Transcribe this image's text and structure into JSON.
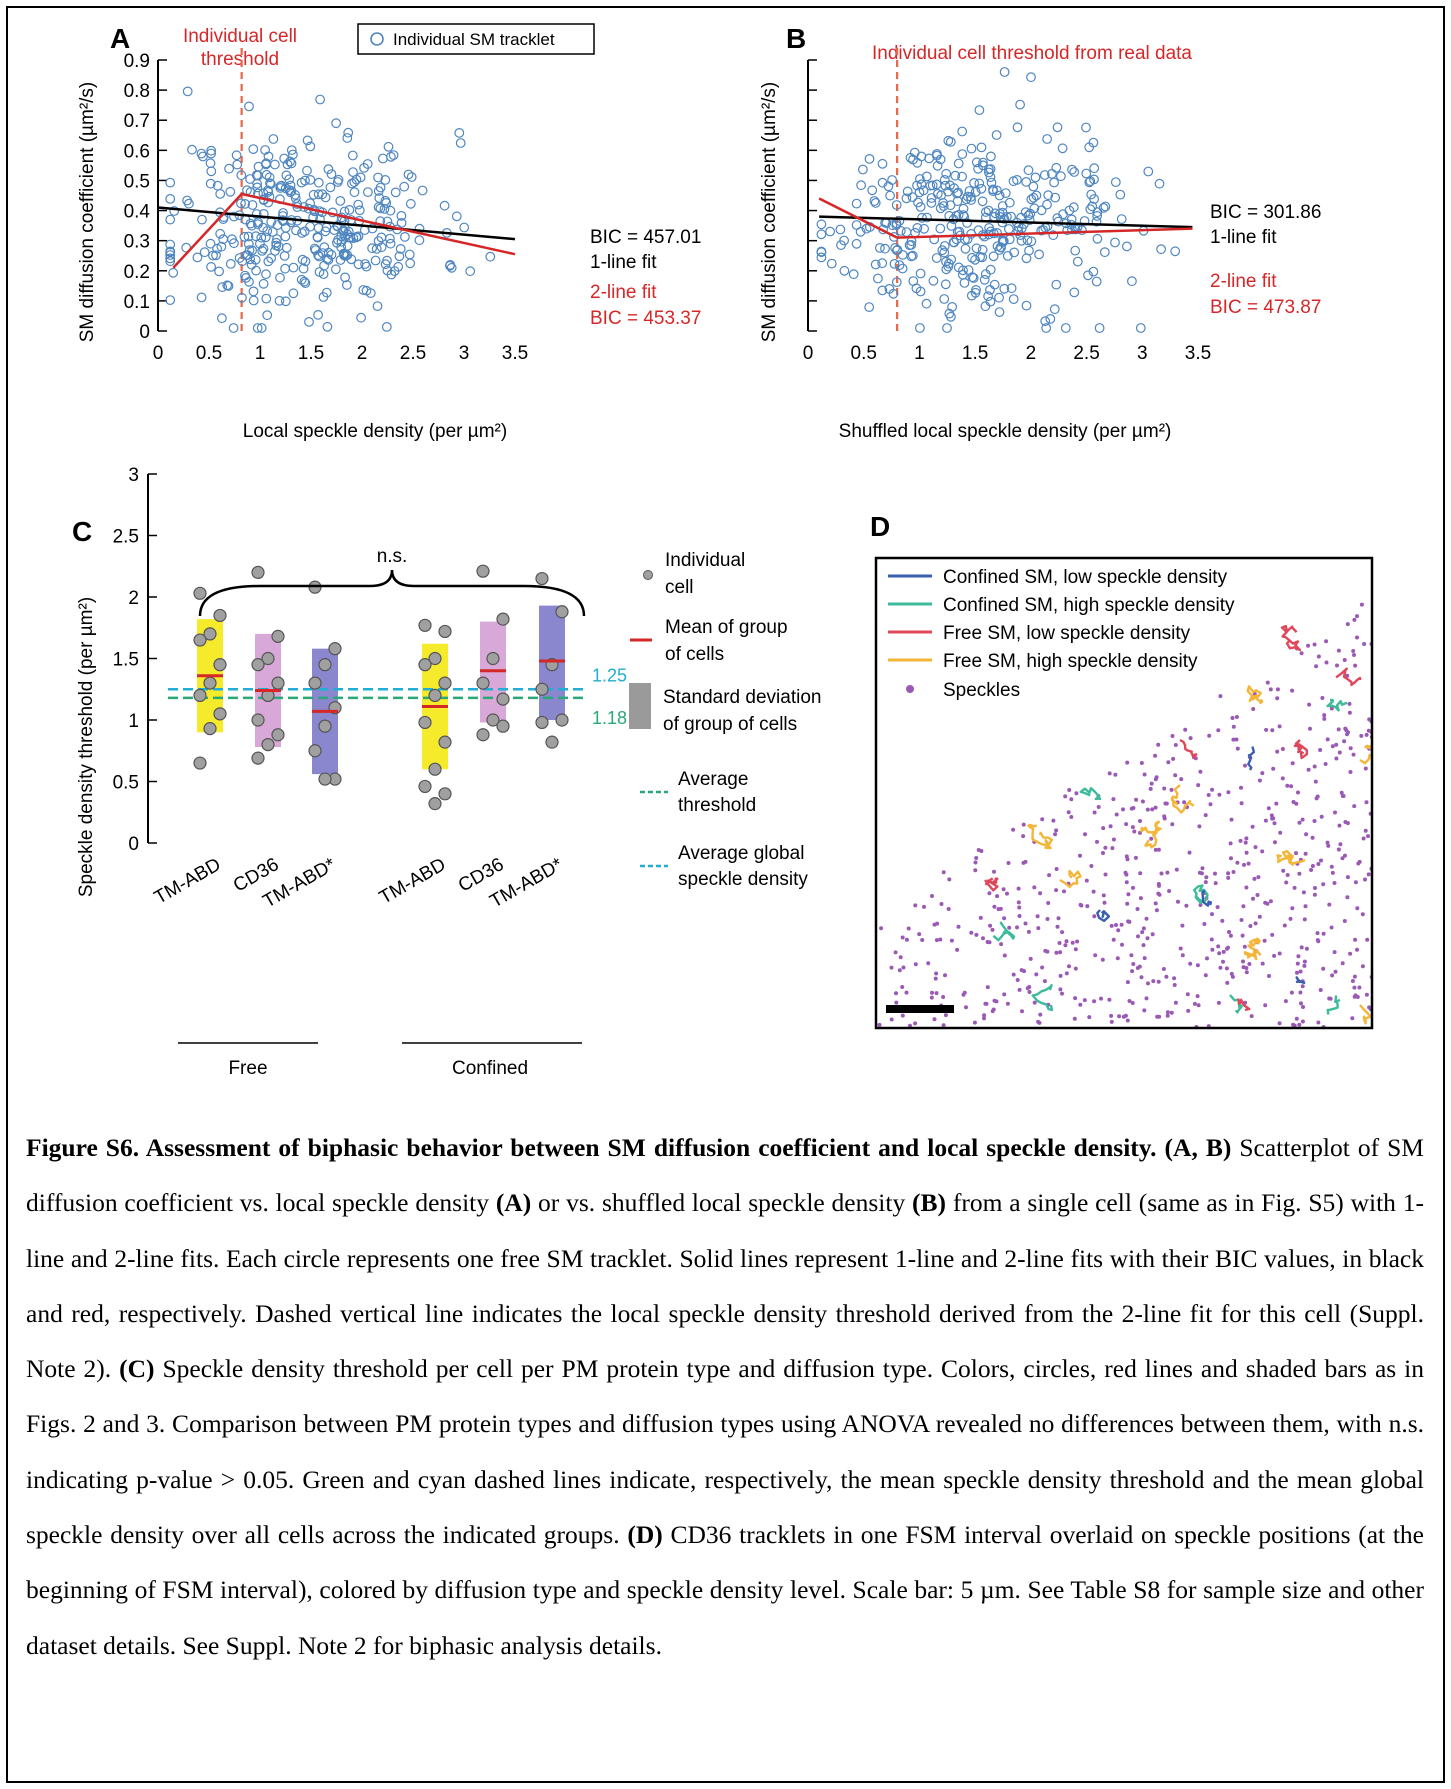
{
  "panels": {
    "A": {
      "letter": "A",
      "ylabel": "SM diffusion coefficient (µm²/s)",
      "xlabel": "Local speckle density (per µm²)",
      "threshold_label_line1": "Individual cell",
      "threshold_label_line2": "threshold",
      "legend_label": "Individual SM tracklet",
      "bic_1line": "BIC = 457.01",
      "label_1line": "1-line fit",
      "label_2line": "2-line fit",
      "bic_2line": "BIC = 453.37"
    },
    "B": {
      "letter": "B",
      "ylabel": "SM diffusion coefficient (µm²/s)",
      "xlabel": "Shuffled local speckle density (per µm²)",
      "threshold_label": "Individual cell threshold from real data",
      "bic_1line": "BIC = 301.86",
      "label_1line": "1-line fit",
      "label_2line": "2-line fit",
      "bic_2line": "BIC = 473.87"
    },
    "C": {
      "letter": "C",
      "ylabel": "Speckle density threshold (per µm²)",
      "ns_label": "n.s.",
      "avg_threshold_value": "1.18",
      "avg_global_value": "1.25",
      "group_free": "Free",
      "group_confined": "Confined",
      "legend": {
        "cell_line1": "Individual",
        "cell_line2": "cell",
        "mean_line1": "Mean of group",
        "mean_line2": "of cells",
        "sd_line1": "Standard deviation",
        "sd_line2": "of group of cells",
        "thr_line1": "Average",
        "thr_line2": "threshold",
        "glob_line1": "Average global",
        "glob_line2": "speckle density"
      }
    },
    "D": {
      "letter": "D",
      "legend": {
        "confined_low": "Confined SM, low speckle density",
        "confined_high": "Confined SM, high speckle density",
        "free_low": "Free SM, low speckle density",
        "free_high": "Free SM, high speckle density",
        "speckles": "Speckles"
      }
    }
  },
  "colors": {
    "red": "#d62728",
    "threshold_dash": "#e8674a",
    "scatter_blue": "#4f86c0",
    "yellow": "#f5eb2a",
    "pink": "#d8a8d8",
    "purple": "#8a87cf",
    "green_dash": "#2aa876",
    "cyan_dash": "#22aed4",
    "confined_low": "#3a5fb0",
    "confined_high": "#3dbb9b",
    "free_low": "#e0475a",
    "free_high": "#f4b638",
    "speckle": "#9b59b6"
  },
  "chart_data": [
    {
      "panel": "A",
      "type": "scatter",
      "ylabel": "SM diffusion coefficient (µm²/s)",
      "xlabel": "Local speckle density (per µm²)",
      "xlim": [
        0,
        3.5
      ],
      "ylim": [
        0,
        0.9
      ],
      "xticks": [
        "0",
        "0.5",
        "1",
        "1.5",
        "2",
        "2.5",
        "3",
        "3.5"
      ],
      "yticks": [
        "0",
        "0.1",
        "0.2",
        "0.3",
        "0.4",
        "0.5",
        "0.6",
        "0.7",
        "0.8",
        "0.9"
      ],
      "threshold_x": 0.82,
      "fit_1line": {
        "x": [
          0,
          3.5
        ],
        "y": [
          0.41,
          0.305
        ]
      },
      "fit_2line": {
        "x": [
          0.15,
          0.82,
          3.5
        ],
        "y": [
          0.21,
          0.455,
          0.255
        ]
      },
      "series": [
        {
          "name": "Individual SM tracklet"
        }
      ]
    },
    {
      "panel": "B",
      "type": "scatter",
      "ylabel": "SM diffusion coefficient (µm²/s)",
      "xlabel": "Shuffled local speckle density (per µm²)",
      "xlim": [
        0,
        3.5
      ],
      "ylim": [
        0,
        0.9
      ],
      "xticks": [
        "0",
        "0.5",
        "1",
        "1.5",
        "2",
        "2.5",
        "3",
        "3.5"
      ],
      "threshold_x": 0.8,
      "fit_1line": {
        "x": [
          0.1,
          3.45
        ],
        "y": [
          0.38,
          0.345
        ]
      },
      "fit_2line": {
        "x": [
          0.1,
          0.8,
          3.45
        ],
        "y": [
          0.44,
          0.31,
          0.34
        ]
      }
    },
    {
      "panel": "C",
      "type": "scatter",
      "ylabel": "Speckle density threshold (per µm²)",
      "ylim": [
        0,
        3
      ],
      "yticks": [
        "0",
        "0.5",
        "1",
        "1.5",
        "2",
        "2.5",
        "3"
      ],
      "categories": [
        "TM-ABD",
        "CD36",
        "TM-ABD*",
        "TM-ABD",
        "CD36",
        "TM-ABD*"
      ],
      "groups": [
        "Free",
        "Free",
        "Free",
        "Confined",
        "Confined",
        "Confined"
      ],
      "means": [
        1.36,
        1.24,
        1.07,
        1.11,
        1.4,
        1.48
      ],
      "sd_low": [
        0.9,
        0.78,
        0.56,
        0.6,
        0.98,
        1.0
      ],
      "sd_high": [
        1.82,
        1.7,
        1.58,
        1.62,
        1.8,
        1.93
      ],
      "points": [
        [
          2.03,
          1.85,
          1.7,
          1.65,
          1.45,
          1.3,
          1.2,
          1.05,
          0.93,
          0.65
        ],
        [
          2.2,
          1.68,
          1.5,
          1.45,
          1.3,
          1.2,
          1.0,
          0.88,
          0.8,
          0.69
        ],
        [
          2.08,
          1.58,
          1.45,
          1.3,
          1.1,
          0.95,
          0.75,
          0.52,
          0.52
        ],
        [
          1.77,
          1.72,
          1.5,
          1.45,
          1.3,
          1.2,
          0.98,
          0.82,
          0.6,
          0.46,
          0.4,
          0.32
        ],
        [
          2.21,
          1.82,
          1.5,
          1.3,
          1.17,
          1.0,
          0.88,
          0.95
        ],
        [
          2.15,
          1.88,
          1.45,
          1.25,
          1.0,
          0.82,
          0.98
        ]
      ],
      "avg_threshold": 1.18,
      "avg_global_density": 1.25
    }
  ],
  "caption": {
    "title": "Figure S6. Assessment of biphasic behavior between SM diffusion coefficient and local speckle density.",
    "p1": "(A, B)",
    "t1": " Scatterplot of SM diffusion coefficient vs. local speckle density ",
    "p2": "(A)",
    "t2": " or vs. shuffled local speckle density ",
    "p3": "(B)",
    "t3": " from a single cell (same as in Fig. S5) with 1-line and 2-line fits. Each circle represents one free SM tracklet. Solid lines represent 1-line and 2-line fits with their BIC values, in black and red, respectively. Dashed vertical line indicates the local speckle density threshold derived from the 2-line fit for this cell (Suppl. Note 2). ",
    "p4": "(C)",
    "t4": " Speckle density threshold per cell per PM protein type and diffusion type. Colors, circles, red lines and shaded bars as in Figs. 2 and 3. Comparison between PM protein types and diffusion types using ANOVA revealed no differences between them, with n.s. indicating p-value > 0.05. Green and cyan dashed lines indicate, respectively, the mean speckle density threshold and the mean global speckle density over all cells across the indicated groups. ",
    "p5": "(D)",
    "t5": " CD36 tracklets in one FSM interval overlaid on speckle positions (at the beginning of FSM interval), colored by diffusion type and speckle density level. Scale bar: 5 µm. See Table S8 for sample size and other dataset details. See Suppl. Note 2 for biphasic analysis details."
  }
}
